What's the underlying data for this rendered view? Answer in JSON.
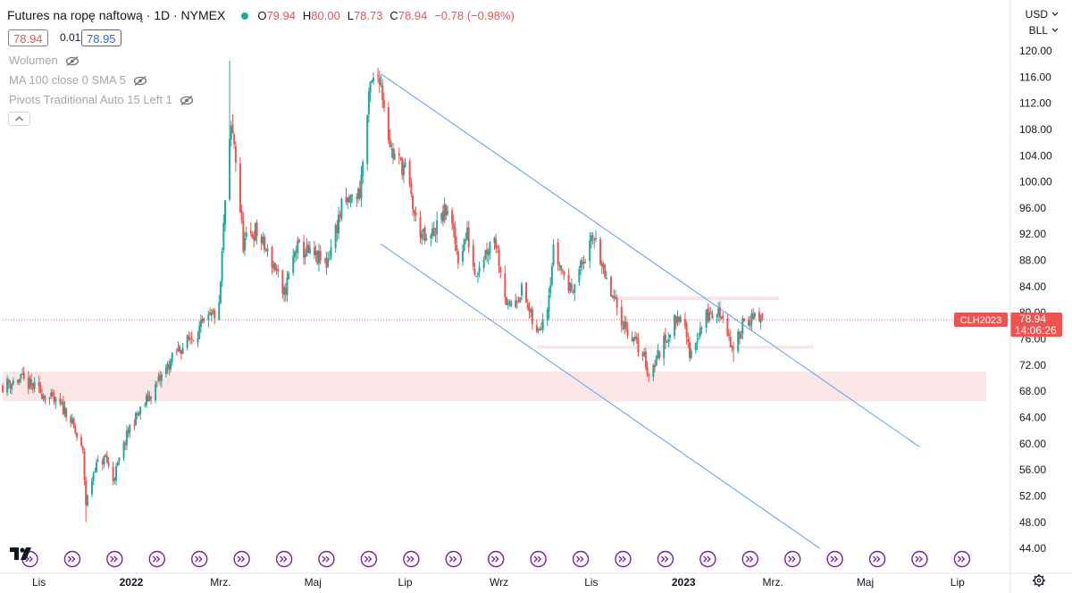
{
  "header": {
    "title": "Futures na ropę naftową · 1D · NYMEX",
    "open_label": "O",
    "open_value": "79.94",
    "high_label": "H",
    "high_value": "80.00",
    "low_label": "L",
    "low_value": "78.73",
    "close_label": "C",
    "close_value": "78.94",
    "change": "−0.78 (−0.98%)",
    "status_color": "#26a69a"
  },
  "quote": {
    "bid": "78.94",
    "spread": "0.01",
    "ask": "78.95"
  },
  "indicators": [
    {
      "label": "Wolumen"
    },
    {
      "label": "MA 100 close 0 SMA 5"
    },
    {
      "label": "Pivots Traditional Auto 15 Left 1"
    }
  ],
  "axis_controls": {
    "currency": "USD",
    "unit": "BLL"
  },
  "price_badge": {
    "symbol": "CLH2023",
    "price": "78.94",
    "countdown": "14:06:26"
  },
  "colors": {
    "up": "#26a69a",
    "down": "#ef5350",
    "channel": "#5b9cf2",
    "zone": "#fae6e6",
    "event": "#7b1fa2"
  },
  "icons": [
    "eye-hidden-icon",
    "tradingview-logo-icon",
    "settings-gear-icon",
    "event-arrow-icon"
  ],
  "chart_data": {
    "type": "candlestick",
    "y_axis": {
      "min": 44,
      "max": 120,
      "ticks": [
        "120.00",
        "116.00",
        "112.00",
        "108.00",
        "104.00",
        "100.00",
        "96.00",
        "92.00",
        "88.00",
        "84.00",
        "80.00",
        "76.00",
        "72.00",
        "68.00",
        "64.00",
        "60.00",
        "56.00",
        "52.00",
        "48.00",
        "44.00"
      ]
    },
    "x_axis": {
      "labels": [
        "Lis",
        "2022",
        "Mrz.",
        "Maj",
        "Lip",
        "Wrz",
        "Lis",
        "2023",
        "Mrz.",
        "Maj",
        "Lip"
      ],
      "label_dates": [
        "2021-11-01",
        "2022-01-01",
        "2022-03-01",
        "2022-05-01",
        "2022-07-01",
        "2022-09-01",
        "2022-11-01",
        "2023-01-01",
        "2023-03-01",
        "2023-05-01",
        "2023-07-01"
      ],
      "range": [
        "2021-10-08",
        "2023-07-20"
      ]
    },
    "anchors": [
      [
        "2021-10-08",
        68.9
      ],
      [
        "2021-10-20",
        69.8
      ],
      [
        "2021-11-05",
        67.5
      ],
      [
        "2021-11-20",
        64.8
      ],
      [
        "2021-11-30",
        58.5
      ],
      [
        "2021-12-02",
        50.8
      ],
      [
        "2021-12-08",
        56.5
      ],
      [
        "2021-12-15",
        57.8
      ],
      [
        "2021-12-20",
        54.5
      ],
      [
        "2021-12-31",
        62.5
      ],
      [
        "2022-01-15",
        68
      ],
      [
        "2022-01-31",
        74
      ],
      [
        "2022-02-15",
        77.5
      ],
      [
        "2022-02-28",
        80.5
      ],
      [
        "2022-03-04",
        97
      ],
      [
        "2022-03-08",
        108
      ],
      [
        "2022-03-10",
        106
      ],
      [
        "2022-03-16",
        90.5
      ],
      [
        "2022-03-24",
        92.5
      ],
      [
        "2022-04-07",
        86.5
      ],
      [
        "2022-04-11",
        82
      ],
      [
        "2022-04-20",
        90
      ],
      [
        "2022-05-10",
        87.5
      ],
      [
        "2022-05-20",
        96
      ],
      [
        "2022-06-01",
        98.5
      ],
      [
        "2022-06-08",
        114.5
      ],
      [
        "2022-06-14",
        116.5
      ],
      [
        "2022-06-22",
        104.5
      ],
      [
        "2022-07-01",
        102
      ],
      [
        "2022-07-08",
        94
      ],
      [
        "2022-07-15",
        90.5
      ],
      [
        "2022-07-29",
        96
      ],
      [
        "2022-08-05",
        88.5
      ],
      [
        "2022-08-11",
        92
      ],
      [
        "2022-08-16",
        86.2
      ],
      [
        "2022-08-29",
        92
      ],
      [
        "2022-09-07",
        80.5
      ],
      [
        "2022-09-16",
        83.5
      ],
      [
        "2022-09-26",
        76.5
      ],
      [
        "2022-10-03",
        81.5
      ],
      [
        "2022-10-07",
        89.5
      ],
      [
        "2022-10-18",
        83.5
      ],
      [
        "2022-11-04",
        92
      ],
      [
        "2022-11-10",
        85
      ],
      [
        "2022-11-22",
        78.5
      ],
      [
        "2022-12-06",
        73.2
      ],
      [
        "2022-12-09",
        70.5
      ],
      [
        "2022-12-20",
        76
      ],
      [
        "2022-12-30",
        80.2
      ],
      [
        "2023-01-05",
        73.8
      ],
      [
        "2023-01-16",
        79.5
      ],
      [
        "2023-01-27",
        80
      ],
      [
        "2023-02-03",
        73.5
      ],
      [
        "2023-02-10",
        79.5
      ],
      [
        "2023-02-15",
        78.9
      ],
      [
        "2023-02-22",
        78.94
      ]
    ],
    "extremes": [
      {
        "date": "2021-12-02",
        "low": 48.0
      },
      {
        "date": "2022-03-07",
        "high": 118.5
      },
      {
        "date": "2022-06-14",
        "high": 117.0
      },
      {
        "date": "2022-12-09",
        "low": 70.3
      },
      {
        "date": "2023-02-03",
        "low": 72.5
      }
    ],
    "last": {
      "open": 79.94,
      "high": 80.0,
      "low": 78.73,
      "close": 78.94
    },
    "channel_upper": [
      [
        "2022-06-15",
        116.5
      ],
      [
        "2023-06-06",
        59.5
      ]
    ],
    "channel_lower": [
      [
        "2022-06-15",
        90.5
      ],
      [
        "2023-04-01",
        44.0
      ]
    ],
    "zones": [
      {
        "from": 66.5,
        "to": 71.0,
        "start": "2021-10-08",
        "end": "2023-07-20"
      },
      {
        "from": 81.9,
        "to": 82.5,
        "start": "2022-11-15",
        "end": "2023-03-05"
      },
      {
        "from": 74.5,
        "to": 75.0,
        "start": "2022-09-26",
        "end": "2023-03-28"
      }
    ],
    "event_dates": [
      "2021-10-26",
      "2021-11-23",
      "2021-12-21",
      "2022-01-18",
      "2022-02-15",
      "2022-03-15",
      "2022-04-12",
      "2022-05-10",
      "2022-06-07",
      "2022-07-05",
      "2022-08-02",
      "2022-08-30",
      "2022-09-27",
      "2022-10-25",
      "2022-11-22",
      "2022-12-20",
      "2023-01-17",
      "2023-02-14",
      "2023-03-14",
      "2023-04-11",
      "2023-05-09",
      "2023-06-06",
      "2023-07-04"
    ],
    "last_price_line": 78.94
  }
}
